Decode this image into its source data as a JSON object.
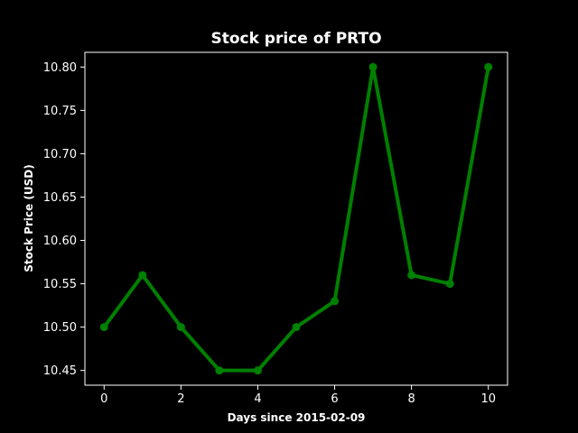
{
  "chart_data": {
    "type": "line",
    "title": "Stock price of PRTO",
    "xlabel": "Days since 2015-02-09",
    "ylabel": "Stock Price (USD)",
    "x": [
      0,
      1,
      2,
      3,
      4,
      5,
      6,
      7,
      8,
      9,
      10
    ],
    "series": [
      {
        "values": [
          10.5,
          10.56,
          10.5,
          10.45,
          10.45,
          10.5,
          10.53,
          10.8,
          10.56,
          10.55,
          10.8
        ]
      }
    ],
    "xlim": [
      -0.5,
      10.5
    ],
    "ylim": [
      10.433,
      10.817
    ],
    "xticks": [
      0,
      2,
      4,
      6,
      8,
      10
    ],
    "yticks": [
      10.45,
      10.5,
      10.55,
      10.6,
      10.65,
      10.7,
      10.75,
      10.8
    ],
    "ytick_labels": [
      "10.45",
      "10.50",
      "10.55",
      "10.60",
      "10.65",
      "10.70",
      "10.75",
      "10.80"
    ],
    "xtick_labels": [
      "0",
      "2",
      "4",
      "6",
      "8",
      "10"
    ],
    "grid": false,
    "background": "#000000",
    "axis_color": "#ffffff",
    "line_color": "#008000",
    "marker": "circle"
  }
}
